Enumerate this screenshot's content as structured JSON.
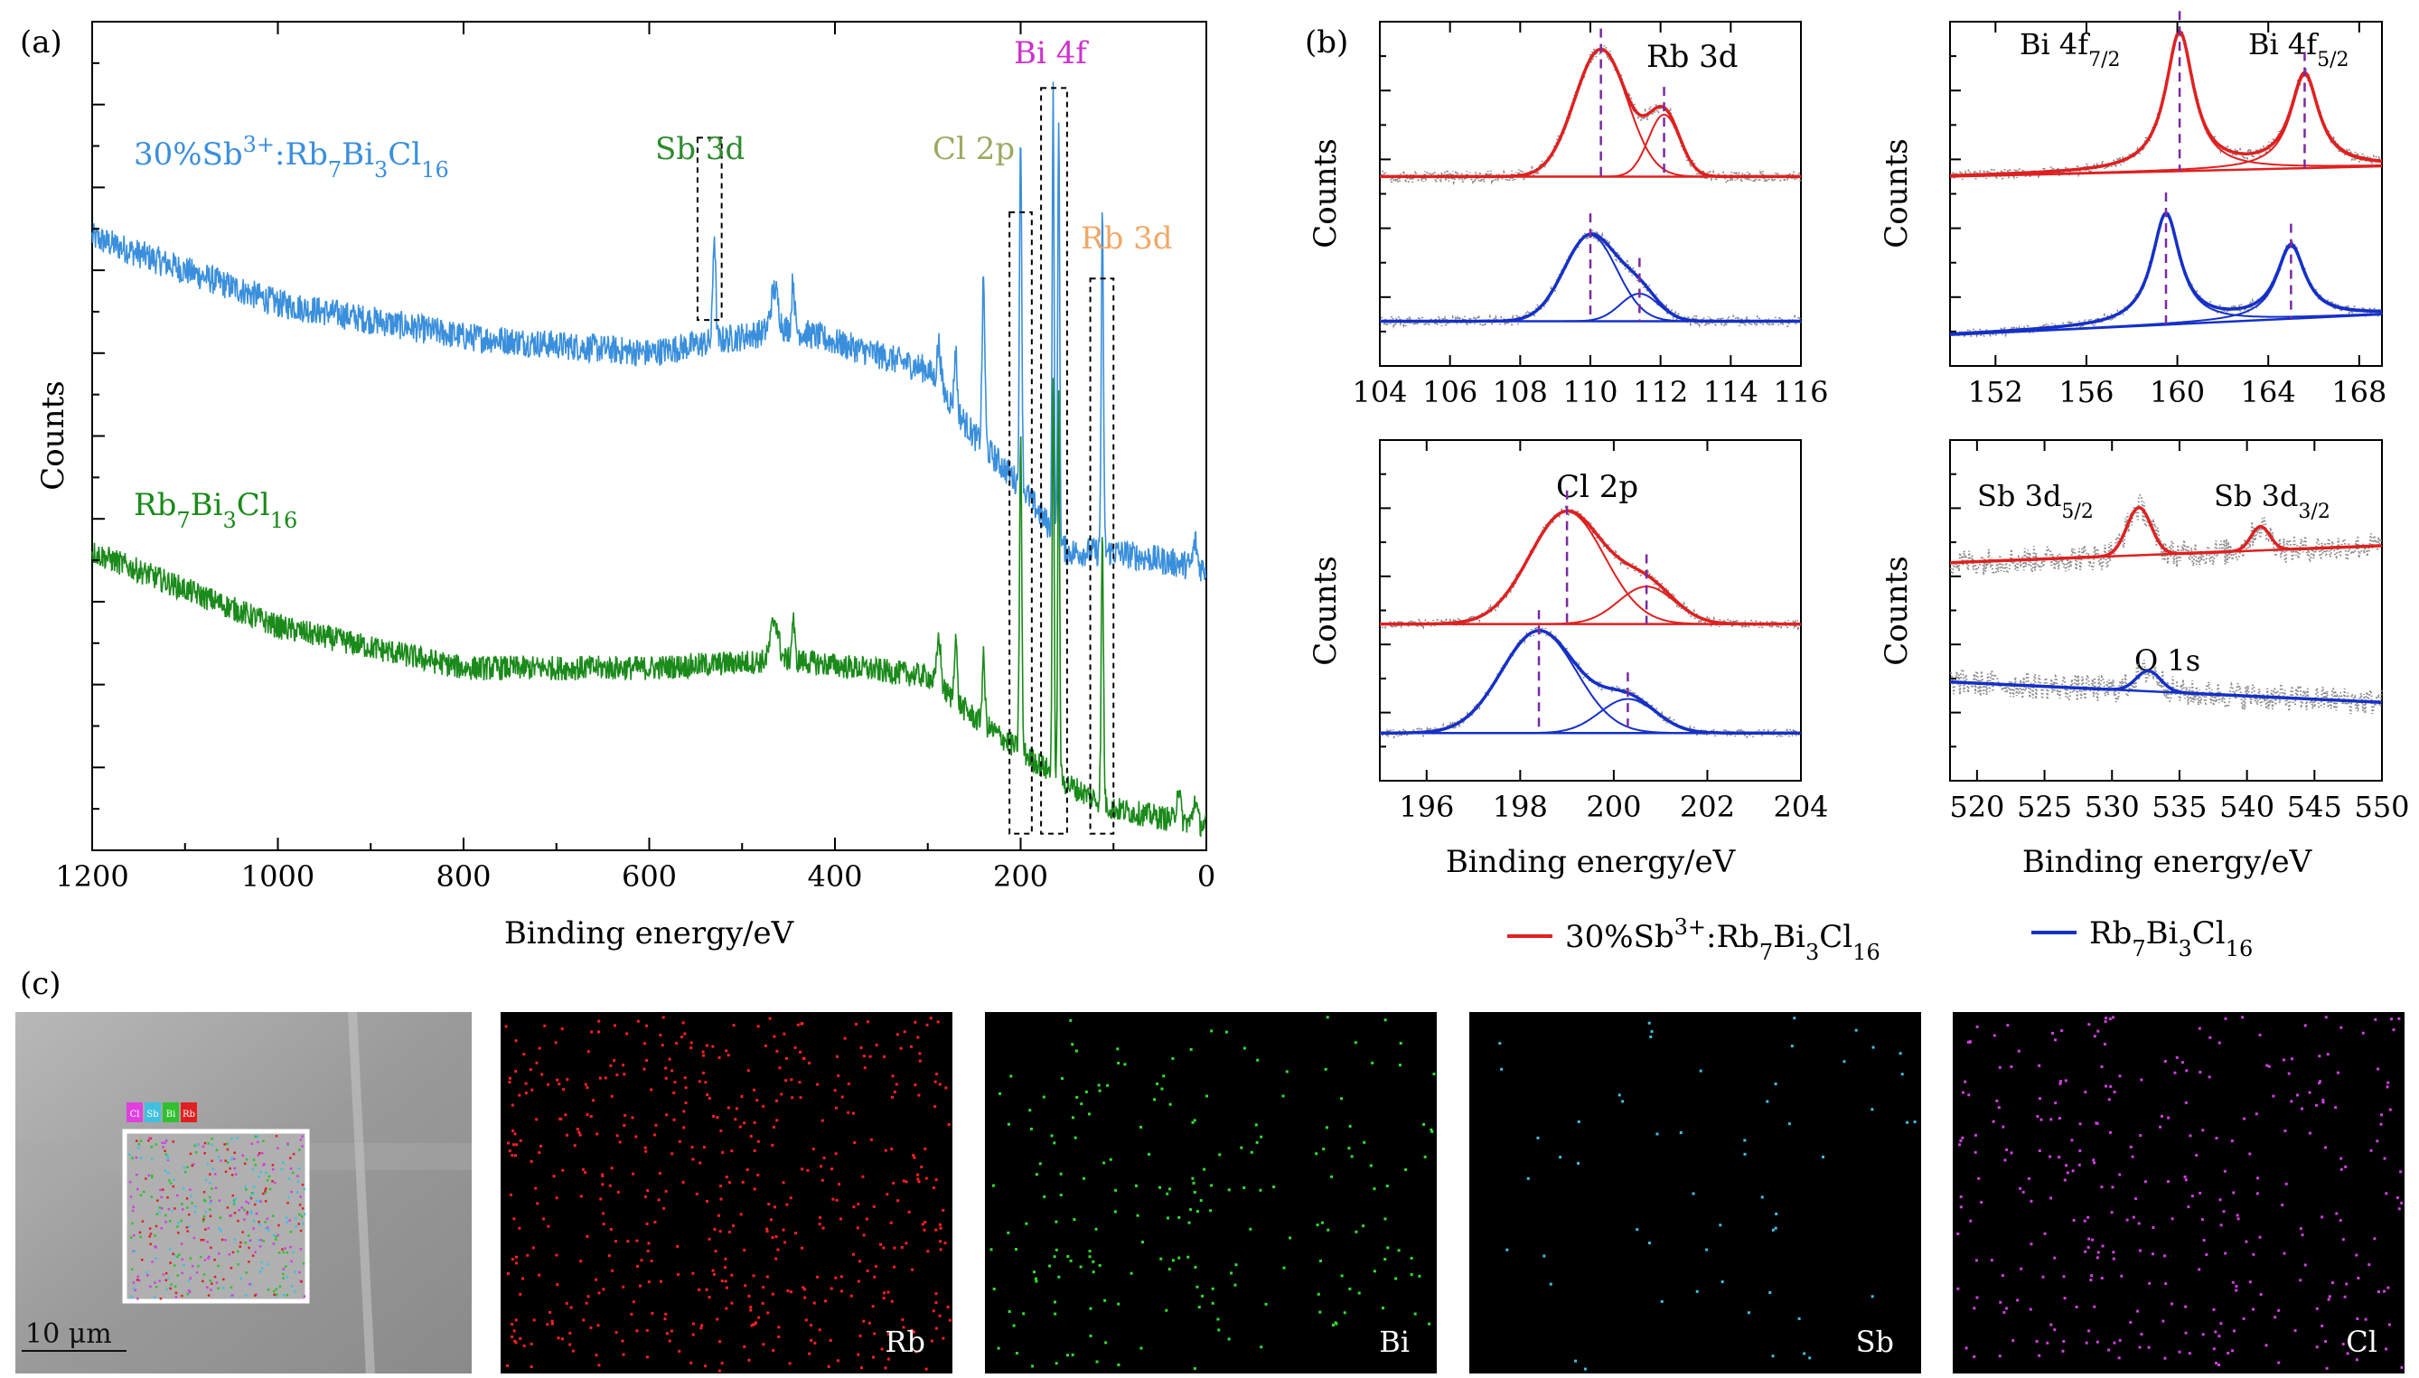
{
  "panel_labels": {
    "a": "(a)",
    "b": "(b)",
    "c": "(c)"
  },
  "colors": {
    "doped": "#3a8fdc",
    "pure": "#1a8a1a",
    "fit_doped": "#e02020",
    "fit_pure": "#1530c8",
    "raw_points": "#888888",
    "sb": "#2e8b2e",
    "cl": "#9aaa60",
    "bi": "#cc33cc",
    "rb": "#f0a868",
    "map_rb": "#ff2020",
    "map_bi": "#30e030",
    "map_sb": "#40c0e0",
    "map_cl": "#d040e0"
  },
  "chart_data": [
    {
      "id": "a",
      "type": "line",
      "xlabel": "Binding energy/eV",
      "ylabel": "Counts",
      "xlim": [
        1200,
        0
      ],
      "xticks": [
        "1200",
        "1000",
        "800",
        "600",
        "400",
        "200",
        "0"
      ],
      "series": [
        {
          "name": "30%Sb³⁺:Rb₇Bi₃Cl₁₆",
          "baseline": [
            [
              1200,
              0.74
            ],
            [
              1000,
              0.66
            ],
            [
              800,
              0.62
            ],
            [
              600,
              0.6
            ],
            [
              450,
              0.63
            ],
            [
              300,
              0.58
            ],
            [
              250,
              0.5
            ],
            [
              200,
              0.44
            ],
            [
              150,
              0.36
            ],
            [
              100,
              0.36
            ],
            [
              0,
              0.34
            ]
          ]
        },
        {
          "name": "Rb₇Bi₃Cl₁₆",
          "baseline": [
            [
              1200,
              0.36
            ],
            [
              1000,
              0.27
            ],
            [
              800,
              0.22
            ],
            [
              600,
              0.22
            ],
            [
              450,
              0.23
            ],
            [
              300,
              0.21
            ],
            [
              250,
              0.16
            ],
            [
              200,
              0.12
            ],
            [
              150,
              0.08
            ],
            [
              100,
              0.05
            ],
            [
              0,
              0.03
            ]
          ]
        }
      ],
      "annotations": [
        {
          "text": "Sb 3d",
          "x": 540
        },
        {
          "text": "Cl 2p",
          "x": 198
        },
        {
          "text": "Bi 4f",
          "x": 162
        },
        {
          "text": "Rb 3d",
          "x": 112
        }
      ]
    },
    {
      "id": "b-rb",
      "type": "line",
      "title": "Rb 3d",
      "ylabel": "Counts",
      "xlim": [
        104,
        116
      ],
      "xticks": [
        "104",
        "106",
        "108",
        "110",
        "112",
        "114",
        "116"
      ],
      "peaks": {
        "doped": [
          110.3,
          112.1
        ],
        "pure": [
          110.0,
          111.4
        ]
      }
    },
    {
      "id": "b-bi",
      "type": "line",
      "ylabel": "Counts",
      "xlim": [
        150,
        169
      ],
      "xticks": [
        "152",
        "156",
        "160",
        "164",
        "168"
      ],
      "peak_labels": [
        "Bi 4f7/2",
        "Bi 4f5/2"
      ],
      "peaks": {
        "doped": [
          160.1,
          165.6
        ],
        "pure": [
          159.5,
          165.0
        ]
      }
    },
    {
      "id": "b-cl",
      "type": "line",
      "title": "Cl 2p",
      "xlabel": "Binding energy/eV",
      "ylabel": "Counts",
      "xlim": [
        195,
        204
      ],
      "xticks": [
        "196",
        "198",
        "200",
        "202",
        "204"
      ],
      "peaks": {
        "doped": [
          199.0,
          200.7
        ],
        "pure": [
          198.4,
          200.3
        ]
      }
    },
    {
      "id": "b-sb",
      "type": "line",
      "xlabel": "Binding energy/eV",
      "ylabel": "Counts",
      "xlim": [
        518,
        550
      ],
      "xticks": [
        "520",
        "525",
        "530",
        "535",
        "540",
        "545",
        "550"
      ],
      "peak_labels": [
        "Sb 3d5/2",
        "Sb 3d3/2",
        "O 1s"
      ],
      "peaks": {
        "doped": [
          532.0,
          541.0
        ],
        "pure": [
          532.7
        ]
      }
    }
  ],
  "legend": {
    "doped": "30%Sb³⁺:Rb₇Bi₃Cl₁₆",
    "pure": "Rb₇Bi₃Cl₁₆"
  },
  "mapping": {
    "scalebar": "10 μm",
    "mini_legend": [
      "Cl",
      "Sb",
      "Bi",
      "Rb"
    ],
    "maps": [
      {
        "element": "Rb",
        "density": 520
      },
      {
        "element": "Bi",
        "density": 200
      },
      {
        "element": "Sb",
        "density": 55
      },
      {
        "element": "Cl",
        "density": 320
      }
    ]
  }
}
